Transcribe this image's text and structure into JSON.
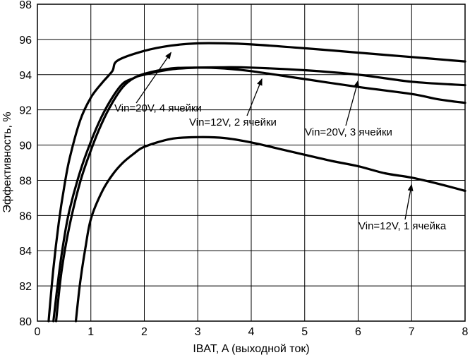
{
  "chart_data": {
    "type": "line",
    "title": "",
    "xlabel": "IBAT, A (выходной ток)",
    "ylabel": "Эффективность, %",
    "xlim": [
      0,
      8
    ],
    "ylim": [
      80,
      98
    ],
    "xticks": [
      "0",
      "1",
      "2",
      "3",
      "4",
      "5",
      "6",
      "7",
      "8"
    ],
    "yticks": [
      "80",
      "82",
      "84",
      "86",
      "88",
      "90",
      "92",
      "94",
      "96",
      "98"
    ],
    "grid": true,
    "series": [
      {
        "name": "Vin=20V, 4 ячейки",
        "x": [
          0.21,
          0.3,
          0.4,
          0.5,
          0.6,
          0.8,
          1.0,
          1.2,
          1.4,
          1.5,
          2.0,
          2.5,
          3.0,
          3.5,
          4.0,
          5.0,
          6.0,
          7.0,
          8.0
        ],
        "y": [
          80,
          83,
          85.6,
          87.6,
          89.2,
          91.4,
          92.7,
          93.5,
          94.2,
          94.8,
          95.35,
          95.65,
          95.78,
          95.78,
          95.72,
          95.5,
          95.25,
          95.0,
          94.75
        ]
      },
      {
        "name": "Vin=12V, 2 ячейки",
        "x": [
          0.3,
          0.4,
          0.5,
          0.6,
          0.8,
          1.0,
          1.2,
          1.4,
          1.6,
          1.8,
          2.0,
          2.5,
          3.0,
          3.5,
          4.0,
          5.0,
          6.0,
          7.0,
          7.5,
          8.0
        ],
        "y": [
          80,
          82.6,
          84.7,
          86.3,
          88.5,
          90.2,
          91.6,
          92.7,
          93.5,
          93.8,
          94.05,
          94.35,
          94.4,
          94.35,
          94.2,
          93.75,
          93.3,
          92.9,
          92.6,
          92.4
        ]
      },
      {
        "name": "Vin=20V, 3 ячейки",
        "x": [
          0.35,
          0.45,
          0.6,
          0.8,
          1.0,
          1.2,
          1.4,
          1.6,
          1.8,
          2.0,
          2.5,
          3.0,
          3.5,
          4.0,
          5.0,
          6.0,
          7.0,
          8.0
        ],
        "y": [
          80,
          82.8,
          85.4,
          87.9,
          89.7,
          91.2,
          92.4,
          93.3,
          93.8,
          94.0,
          94.3,
          94.4,
          94.42,
          94.4,
          94.25,
          94.0,
          93.6,
          93.4
        ]
      },
      {
        "name": "Vin=12V, 1 ячейка",
        "x": [
          0.72,
          0.8,
          0.9,
          1.0,
          1.2,
          1.4,
          1.6,
          1.8,
          2.0,
          2.5,
          3.0,
          3.5,
          4.0,
          4.5,
          5.0,
          5.5,
          6.0,
          6.5,
          7.0,
          7.5,
          8.0
        ],
        "y": [
          80,
          82.2,
          84.2,
          85.8,
          87.3,
          88.3,
          89.0,
          89.5,
          89.9,
          90.35,
          90.45,
          90.4,
          90.15,
          89.8,
          89.45,
          89.1,
          88.8,
          88.4,
          88.15,
          87.8,
          87.4
        ]
      }
    ],
    "annotations": [
      {
        "text": "Vin=20V, 4 ячейки",
        "series": 0,
        "point": [
          2.5,
          95.5
        ]
      },
      {
        "text": "Vin=12V, 2 ячейки",
        "series": 1,
        "point": [
          4.2,
          94.0
        ]
      },
      {
        "text": "Vin=20V, 3 ячейки",
        "series": 2,
        "point": [
          6.0,
          93.9
        ]
      },
      {
        "text": "Vin=12V, 1 ячейка",
        "series": 3,
        "point": [
          7.0,
          88.0
        ]
      }
    ]
  }
}
